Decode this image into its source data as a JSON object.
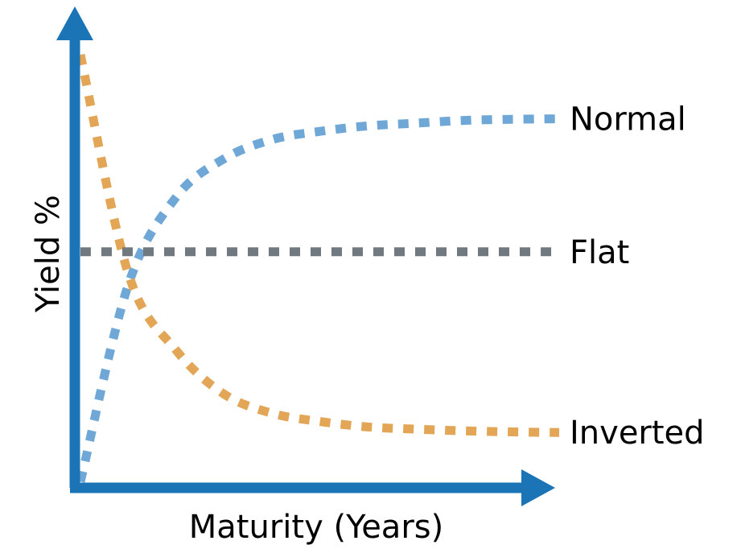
{
  "chart_data": {
    "type": "line",
    "title": "",
    "xlabel": "Maturity (Years)",
    "ylabel": "Yield %",
    "x": [
      0,
      1,
      2,
      3,
      4,
      5,
      6,
      7,
      8,
      9,
      10
    ],
    "xlim": [
      0,
      10
    ],
    "ylim": [
      0,
      100
    ],
    "grid": false,
    "show_ticks": false,
    "axis_color": "#1a74b6",
    "series": [
      {
        "name": "Normal",
        "color": "#6fa8d6",
        "values": [
          12,
          48,
          64,
          71,
          74.5,
          76,
          77,
          77.5,
          78,
          78.2,
          78.3
        ]
      },
      {
        "name": "Flat",
        "color": "#707880",
        "values": [
          54,
          54,
          54,
          54,
          54,
          54,
          54,
          54,
          54,
          54,
          54
        ]
      },
      {
        "name": "Inverted",
        "color": "#e2a656",
        "values": [
          90,
          50,
          36,
          28,
          24.5,
          23,
          22,
          21.6,
          21.3,
          21.1,
          21
        ]
      }
    ]
  }
}
